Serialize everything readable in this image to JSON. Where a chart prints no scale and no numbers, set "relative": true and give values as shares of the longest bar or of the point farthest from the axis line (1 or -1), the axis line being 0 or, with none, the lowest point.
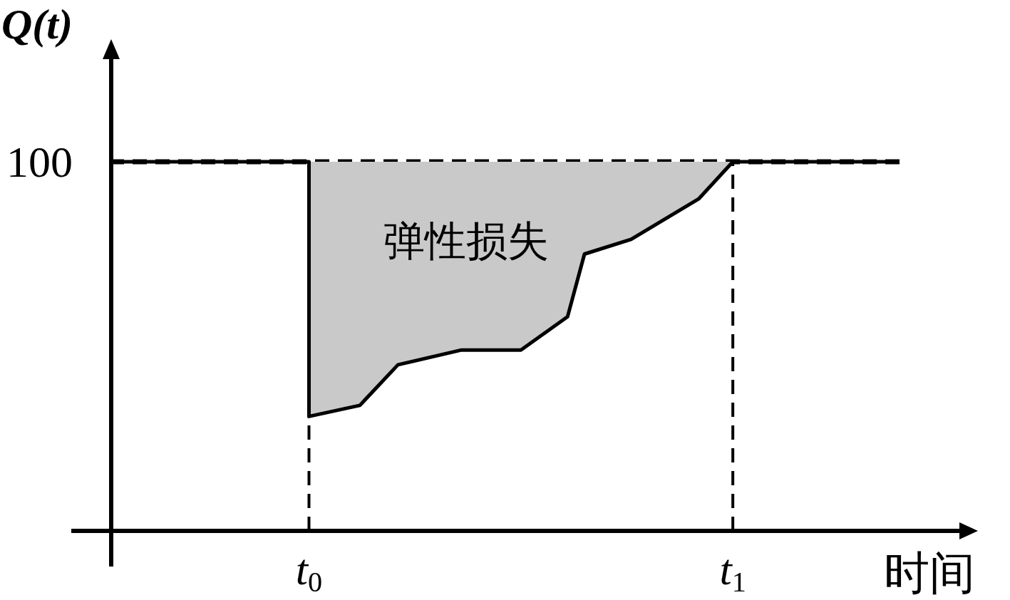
{
  "chart_data": {
    "type": "line",
    "relative": true,
    "xlabel": "时间",
    "ylabel": "Q(t)",
    "xlim": [
      -0.47,
      1.4
    ],
    "xticks": [
      {
        "value": 0,
        "label": "t$_{0}$"
      },
      {
        "value": 1,
        "label": "t$_{1}$"
      }
    ],
    "x": [
      -0.46,
      0,
      0,
      0.12,
      0.21,
      0.36,
      0.5,
      0.61,
      0.65,
      0.76,
      0.92,
      1,
      1.37
    ],
    "series": [
      {
        "color": "#000000",
        "line_style": "solid",
        "values": [
          1,
          1,
          0.31,
          0.34,
          0.45,
          0.49,
          0.49,
          0.58,
          0.75,
          0.79,
          0.9,
          1,
          1
        ],
        "lower": [
          null,
          null,
          0.31,
          0.34,
          0.45,
          0.49,
          0.49,
          0.58,
          0.75,
          0.79,
          0.9,
          1,
          null
        ],
        "upper": [
          null,
          null,
          1,
          1,
          1,
          1,
          1,
          1,
          1,
          1,
          1,
          1,
          null
        ]
      }
    ],
    "ref_lines": [
      {
        "axis": "y",
        "value": 1,
        "label": "100",
        "line_style": "dashed"
      },
      {
        "axis": "x",
        "value": 0,
        "line_style": "dashed"
      },
      {
        "axis": "x",
        "value": 1,
        "line_style": "dashed"
      }
    ],
    "annotations": [
      "弹性损失"
    ]
  }
}
